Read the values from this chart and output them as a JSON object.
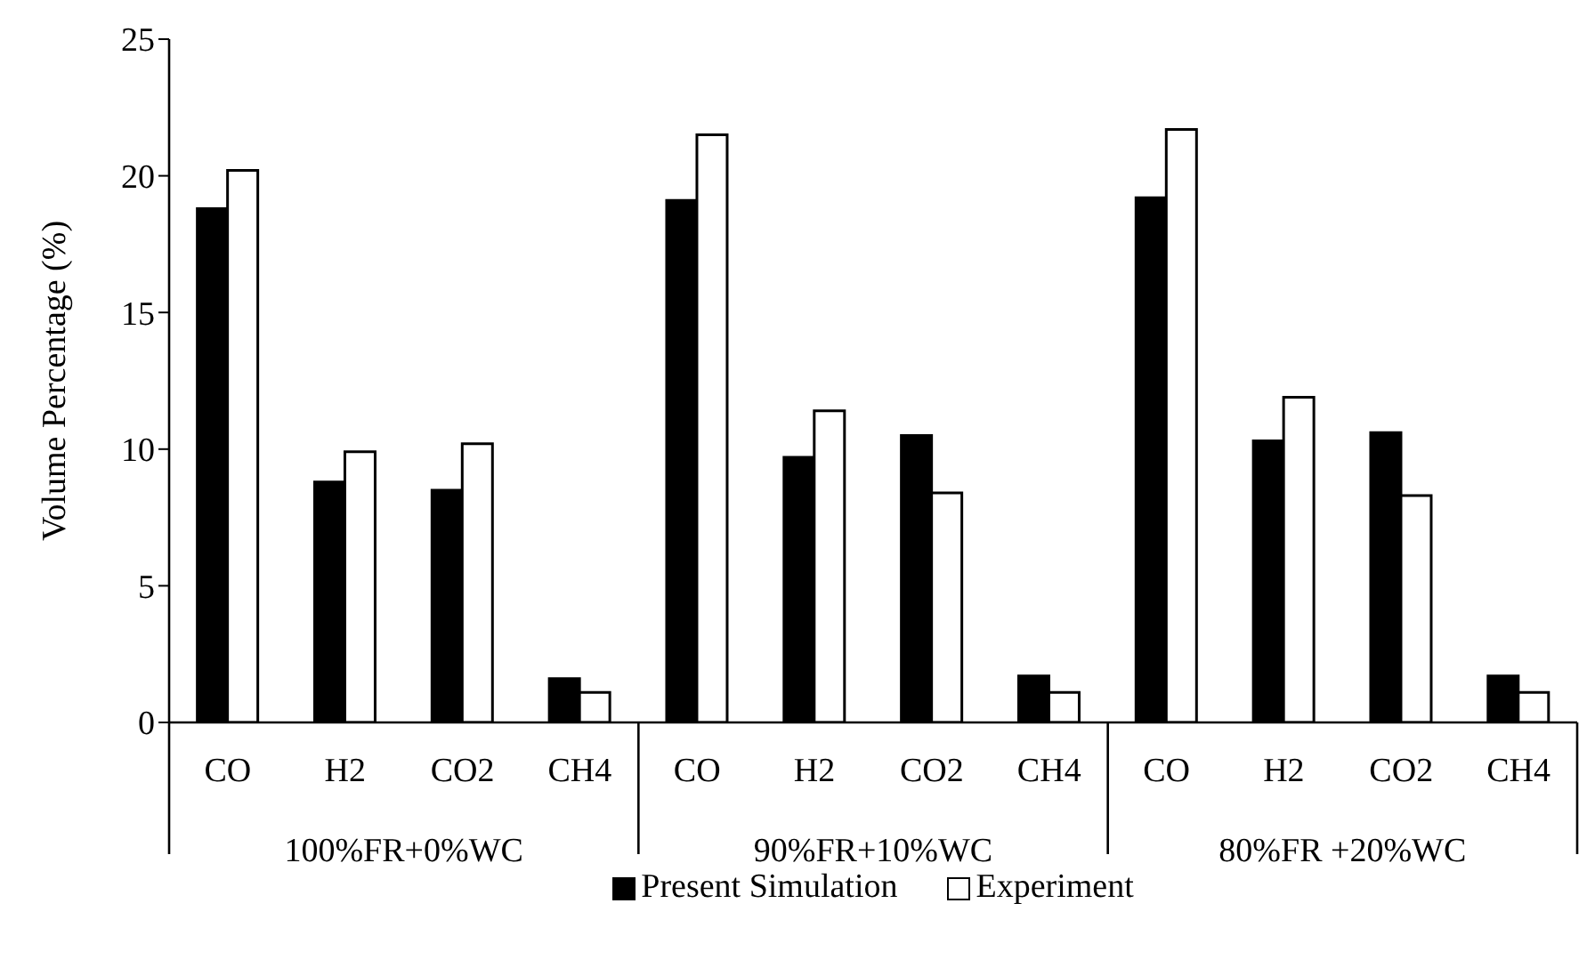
{
  "chart_data": {
    "type": "bar",
    "ylabel": "Volume Percentage (%)",
    "categories": [
      "CO",
      "H2",
      "CO2",
      "CH4",
      "CO",
      "H2",
      "CO2",
      "CH4",
      "CO",
      "H2",
      "CO2",
      "CH4"
    ],
    "annotations": [
      "100%FR+0%WC",
      "90%FR+10%WC",
      "80%FR +20%WC"
    ],
    "series": [
      {
        "name": "Present Simulation",
        "color": "#000000",
        "values": [
          18.8,
          8.8,
          8.5,
          1.6,
          19.1,
          9.7,
          10.5,
          1.7,
          19.2,
          10.3,
          10.6,
          1.7
        ]
      },
      {
        "name": "Experiment",
        "color": "#ffffff",
        "values": [
          20.2,
          9.9,
          10.2,
          1.1,
          21.5,
          11.4,
          8.4,
          1.1,
          21.7,
          11.9,
          8.3,
          1.1
        ]
      }
    ],
    "ylim": [
      0,
      25
    ],
    "yticks": [
      0,
      5,
      10,
      15,
      20,
      25
    ],
    "legend": "bottom"
  }
}
